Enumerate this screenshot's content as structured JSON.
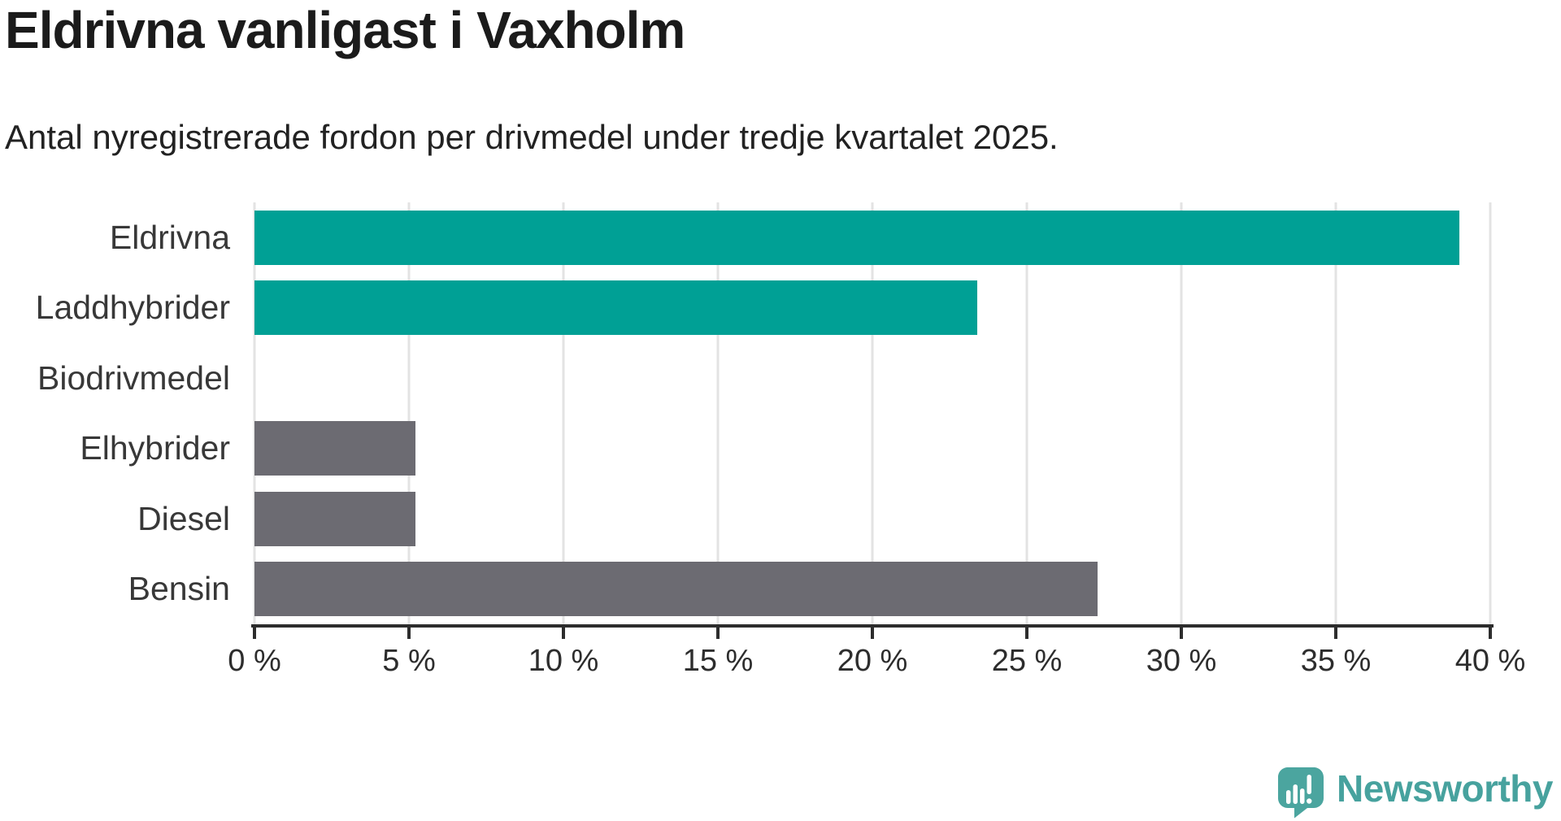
{
  "header": {
    "title": "Eldrivna vanligast i Vaxholm",
    "subtitle": "Antal nyregistrerade fordon per drivmedel under tredje kvartalet 2025."
  },
  "chart_data": {
    "type": "bar",
    "orientation": "horizontal",
    "title": "Eldrivna vanligast i Vaxholm",
    "subtitle": "Antal nyregistrerade fordon per drivmedel under tredje kvartalet 2025.",
    "categories": [
      "Eldrivna",
      "Laddhybrider",
      "Biodrivmedel",
      "Elhybrider",
      "Diesel",
      "Bensin"
    ],
    "values": [
      39.0,
      23.4,
      0,
      5.2,
      5.2,
      27.3
    ],
    "unit": "%",
    "xlim": [
      0,
      40
    ],
    "tick_values": [
      0,
      5,
      10,
      15,
      20,
      25,
      30,
      35,
      40
    ],
    "tick_labels": [
      "0 %",
      "5 %",
      "10 %",
      "15 %",
      "20 %",
      "25 %",
      "30 %",
      "35 %",
      "40 %"
    ],
    "bar_colors": [
      "#00a095",
      "#00a095",
      "#00a095",
      "#6c6b72",
      "#6c6b72",
      "#6c6b72"
    ],
    "grid": true,
    "legend": false
  },
  "footer": {
    "brand": "Newsworthy"
  },
  "colors": {
    "teal": "#00a095",
    "gray": "#6c6b72",
    "gridline": "#e3e3e3",
    "axis": "#2d2d2d",
    "brand_text": "#47a29e",
    "brand_icon": "#4ba59f"
  }
}
